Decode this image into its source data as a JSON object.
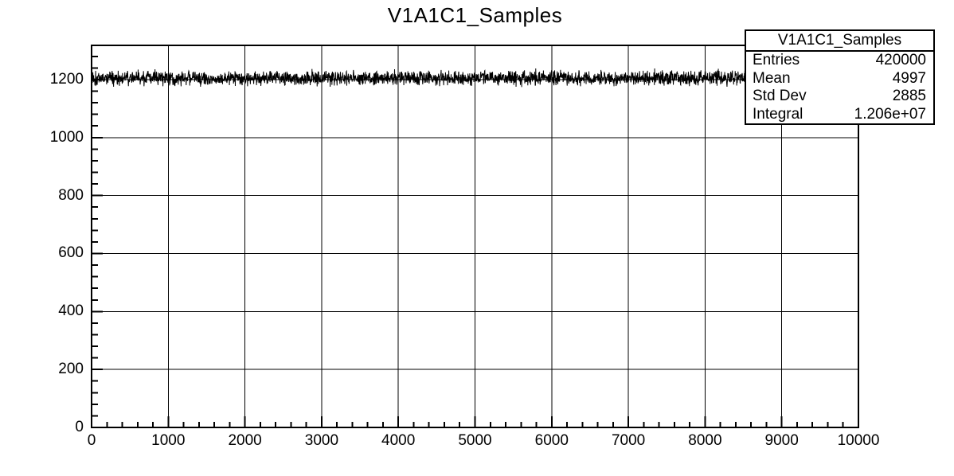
{
  "chart_data": {
    "type": "line",
    "title": "V1A1C1_Samples",
    "xlabel": "",
    "ylabel": "",
    "x_range": [
      0,
      10000
    ],
    "y_range": [
      0,
      1318
    ],
    "x_major_ticks": [
      0,
      1000,
      2000,
      3000,
      4000,
      5000,
      6000,
      7000,
      8000,
      9000,
      10000
    ],
    "x_tick_labels": [
      "0",
      "1000",
      "2000",
      "3000",
      "4000",
      "5000",
      "6000",
      "7000",
      "8000",
      "9000",
      "10000"
    ],
    "x_minor_step": 200,
    "y_major_ticks": [
      0,
      200,
      400,
      600,
      800,
      1000,
      1200
    ],
    "y_tick_labels": [
      "0",
      "200",
      "400",
      "600",
      "800",
      "1000",
      "1200"
    ],
    "y_minor_step": 40,
    "grid": true,
    "legend_position": "none",
    "line_color": "#000000",
    "series": [
      {
        "name": "V1A1C1_Samples",
        "shape": "flat-noisy-baseline",
        "x_start": 0,
        "x_end": 10000,
        "baseline": 1206,
        "noise_sigma": 12,
        "points": 3000,
        "seed": 1337
      }
    ],
    "stats": {
      "title": "V1A1C1_Samples",
      "rows": [
        {
          "label": "Entries",
          "value": "420000"
        },
        {
          "label": "Mean",
          "value": "4997"
        },
        {
          "label": "Std Dev",
          "value": "2885"
        },
        {
          "label": "Integral",
          "value": "1.206e+07"
        }
      ]
    }
  }
}
